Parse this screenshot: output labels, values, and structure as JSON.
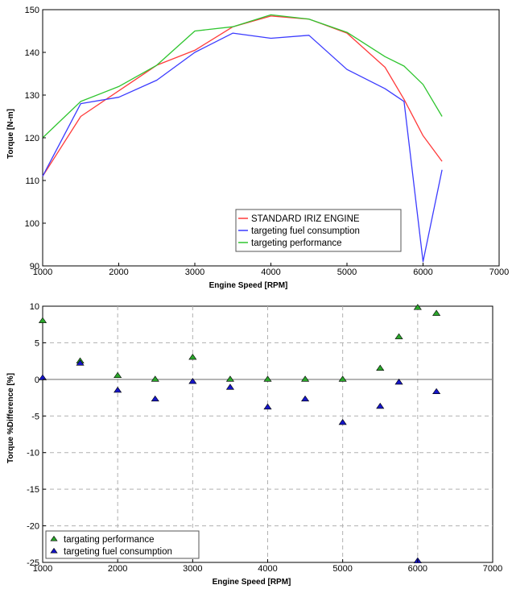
{
  "chart_data": [
    {
      "type": "line",
      "title": "",
      "xlabel": "Engine Speed [RPM]",
      "ylabel": "Torque [N-m]",
      "xlim": [
        1000,
        7000
      ],
      "ylim": [
        90,
        150
      ],
      "xticks": [
        "1000",
        "2000",
        "3000",
        "4000",
        "5000",
        "6000",
        "7000"
      ],
      "yticks": [
        "90",
        "100",
        "110",
        "120",
        "130",
        "140",
        "150"
      ],
      "grid": false,
      "legend_position": "lower-center",
      "colors": {
        "standard": "#ff3b3b",
        "fuel": "#3b3bff",
        "performance": "#2fc52f"
      },
      "series": [
        {
          "name": "STANDARD IRIZ ENGINE",
          "color": "#ff3b3b",
          "x": [
            1000,
            1500,
            2000,
            2500,
            3000,
            3500,
            4000,
            4500,
            5000,
            5500,
            5750,
            6000,
            6250
          ],
          "y": [
            111,
            125,
            131,
            137,
            140.5,
            146,
            148.5,
            147.8,
            144.5,
            136.5,
            129,
            120.5,
            114.5
          ]
        },
        {
          "name": "targeting fuel consumption",
          "color": "#3b3bff",
          "x": [
            1000,
            1500,
            2000,
            2500,
            3000,
            3500,
            4000,
            4500,
            5000,
            5500,
            5750,
            6000,
            6250
          ],
          "y": [
            111,
            128,
            129.5,
            133.5,
            140,
            144.5,
            143.3,
            144,
            136,
            131.5,
            128.5,
            91,
            112.5
          ]
        },
        {
          "name": "targeting performance",
          "color": "#2fc52f",
          "x": [
            1000,
            1500,
            2000,
            2500,
            3000,
            3500,
            4000,
            4500,
            5000,
            5500,
            5750,
            6000,
            6250
          ],
          "y": [
            120,
            128.5,
            132,
            137,
            145,
            146,
            148.8,
            147.8,
            144.7,
            139,
            136.8,
            132.5,
            125
          ]
        }
      ]
    },
    {
      "type": "scatter",
      "title": "",
      "xlabel": "Engine Speed [RPM]",
      "ylabel": "Torque %Difference [%]",
      "xlim": [
        1000,
        7000
      ],
      "ylim": [
        -25,
        10
      ],
      "xticks": [
        "1000",
        "2000",
        "3000",
        "4000",
        "5000",
        "6000",
        "7000"
      ],
      "yticks": [
        "-25",
        "-20",
        "-15",
        "-10",
        "-5",
        "0",
        "5",
        "10"
      ],
      "grid": true,
      "legend_position": "lower-left",
      "colors": {
        "performance": "#2aa52a",
        "fuel": "#1515c8"
      },
      "series": [
        {
          "name": "targating performance",
          "color": "#2aa52a",
          "x": [
            1000,
            1500,
            2000,
            2500,
            3000,
            3500,
            4000,
            4500,
            5000,
            5500,
            5750,
            6000,
            6250
          ],
          "y": [
            8,
            2.5,
            0.5,
            0,
            3,
            0,
            0,
            0,
            0,
            1.5,
            5.8,
            9.8,
            9
          ]
        },
        {
          "name": "targeting fuel consumption",
          "color": "#1515c8",
          "x": [
            1000,
            1500,
            2000,
            2500,
            3000,
            3500,
            4000,
            4500,
            5000,
            5500,
            5750,
            6000,
            6250
          ],
          "y": [
            0.2,
            2.2,
            -1.5,
            -2.7,
            -0.3,
            -1.1,
            -3.8,
            -2.7,
            -5.9,
            -3.7,
            -0.4,
            -24.8,
            -1.7
          ]
        }
      ]
    }
  ]
}
